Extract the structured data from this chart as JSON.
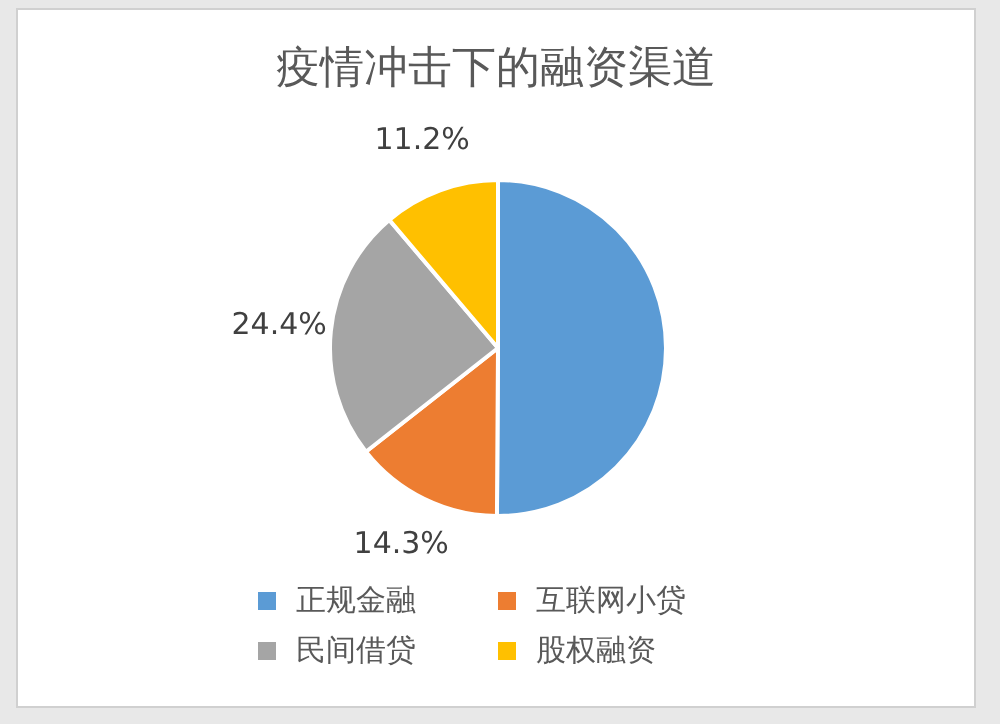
{
  "chart_data": {
    "type": "pie",
    "title": "疫情冲击下的融资渠道",
    "categories": [
      "正规金融",
      "互联网小贷",
      "民间借贷",
      "股权融资"
    ],
    "values": [
      50.1,
      14.3,
      24.4,
      11.2
    ],
    "colors": [
      "#5b9bd5",
      "#ed7d31",
      "#a5a5a5",
      "#ffc000"
    ],
    "value_labels": [
      null,
      "14.3%",
      "24.4%",
      "11.2%"
    ],
    "legend": "bottom"
  }
}
